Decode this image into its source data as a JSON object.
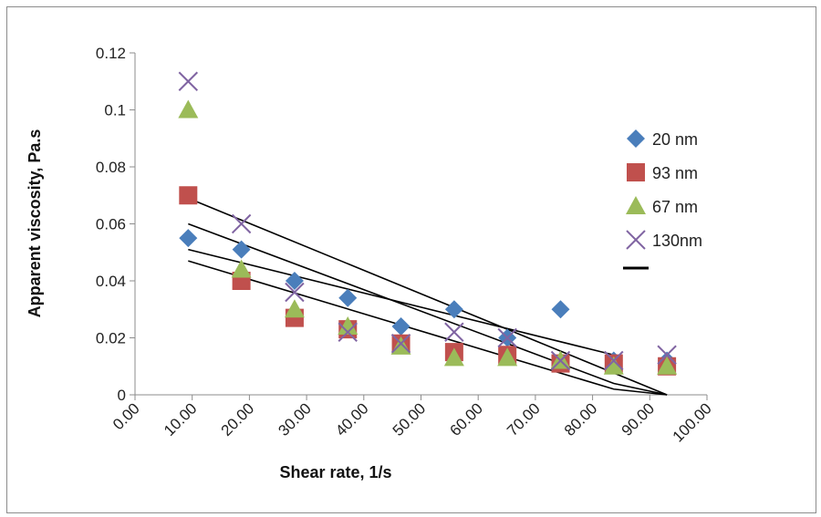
{
  "chart_data": {
    "type": "scatter",
    "xlabel": "Shear rate, 1/s",
    "ylabel": "Apparent viscosity, Pa.s",
    "xlim": [
      0,
      100
    ],
    "ylim": [
      0,
      0.12
    ],
    "x_ticks": [
      "0.00",
      "10.00",
      "20.00",
      "30.00",
      "40.00",
      "50.00",
      "60.00",
      "70.00",
      "80.00",
      "90.00",
      "100.00"
    ],
    "y_ticks": [
      "0",
      "0.02",
      "0.04",
      "0.06",
      "0.08",
      "0.1",
      "0.12"
    ],
    "grid": false,
    "legend_position": "right",
    "series": [
      {
        "name": "20 nm",
        "marker": "diamond",
        "color": "#4a7ebb",
        "points": [
          [
            9.3,
            0.055
          ],
          [
            18.6,
            0.051
          ],
          [
            27.9,
            0.04
          ],
          [
            37.2,
            0.034
          ],
          [
            46.5,
            0.024
          ],
          [
            55.8,
            0.03
          ],
          [
            65.1,
            0.02
          ],
          [
            74.4,
            0.03
          ],
          [
            83.7,
            0.012
          ],
          [
            93.0,
            0.012
          ]
        ]
      },
      {
        "name": "93 nm",
        "marker": "square",
        "color": "#c0504d",
        "points": [
          [
            9.3,
            0.07
          ],
          [
            18.6,
            0.04
          ],
          [
            27.9,
            0.027
          ],
          [
            37.2,
            0.023
          ],
          [
            46.5,
            0.018
          ],
          [
            55.8,
            0.015
          ],
          [
            65.1,
            0.014
          ],
          [
            74.4,
            0.011
          ],
          [
            83.7,
            0.011
          ],
          [
            93.0,
            0.01
          ]
        ]
      },
      {
        "name": "67 nm",
        "marker": "triangle",
        "color": "#9bbb59",
        "points": [
          [
            9.3,
            0.1
          ],
          [
            18.6,
            0.044
          ],
          [
            27.9,
            0.03
          ],
          [
            37.2,
            0.024
          ],
          [
            46.5,
            0.017
          ],
          [
            55.8,
            0.013
          ],
          [
            65.1,
            0.013
          ],
          [
            74.4,
            0.012
          ],
          [
            83.7,
            0.01
          ],
          [
            93.0,
            0.01
          ]
        ]
      },
      {
        "name": "130nm",
        "marker": "x",
        "color": "#8064a2",
        "points": [
          [
            9.3,
            0.11
          ],
          [
            18.6,
            0.06
          ],
          [
            27.9,
            0.036
          ],
          [
            37.2,
            0.022
          ],
          [
            46.5,
            0.018
          ],
          [
            55.8,
            0.022
          ],
          [
            65.1,
            0.02
          ],
          [
            74.4,
            0.012
          ],
          [
            83.7,
            0.012
          ],
          [
            93.0,
            0.014
          ]
        ]
      }
    ],
    "trendlines": [
      {
        "color": "#000000",
        "points": [
          [
            9.3,
            0.069
          ],
          [
            93.0,
            0.0
          ]
        ]
      },
      {
        "color": "#000000",
        "points": [
          [
            9.3,
            0.06
          ],
          [
            83.7,
            0.004
          ],
          [
            93.0,
            0.0
          ]
        ]
      },
      {
        "color": "#000000",
        "points": [
          [
            9.3,
            0.051
          ],
          [
            83.7,
            0.014
          ]
        ]
      },
      {
        "color": "#000000",
        "points": [
          [
            9.3,
            0.047
          ],
          [
            83.7,
            0.002
          ],
          [
            93.0,
            0.0
          ]
        ]
      }
    ],
    "legend_extra_line": {
      "color": "#000000"
    }
  }
}
